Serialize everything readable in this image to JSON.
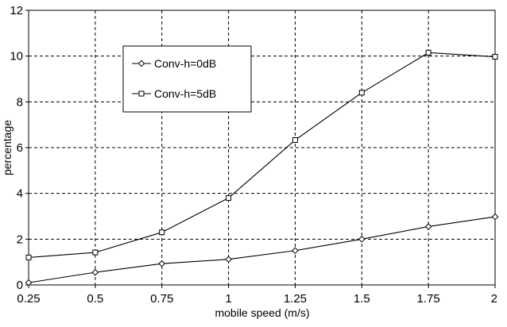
{
  "chart_data": {
    "type": "line",
    "xlabel": "mobile speed (m/s)",
    "ylabel": "percentage",
    "categories": [
      "0.25",
      "0.5",
      "0.75",
      "1",
      "1.25",
      "1.5",
      "1.75",
      "2"
    ],
    "ylim": [
      0,
      12
    ],
    "yticks": [
      "0",
      "2",
      "4",
      "6",
      "8",
      "10",
      "12"
    ],
    "grid": true,
    "grid_style": "dashed",
    "legend_position": "top-left inside plot",
    "series": [
      {
        "name": "Conv-h=0dB",
        "marker": "diamond",
        "values": [
          0.1,
          0.55,
          0.93,
          1.12,
          1.5,
          2.0,
          2.55,
          2.98
        ]
      },
      {
        "name": "Conv-h=5dB",
        "marker": "square",
        "values": [
          1.2,
          1.42,
          2.3,
          3.8,
          6.33,
          8.4,
          10.15,
          9.97
        ]
      }
    ]
  }
}
